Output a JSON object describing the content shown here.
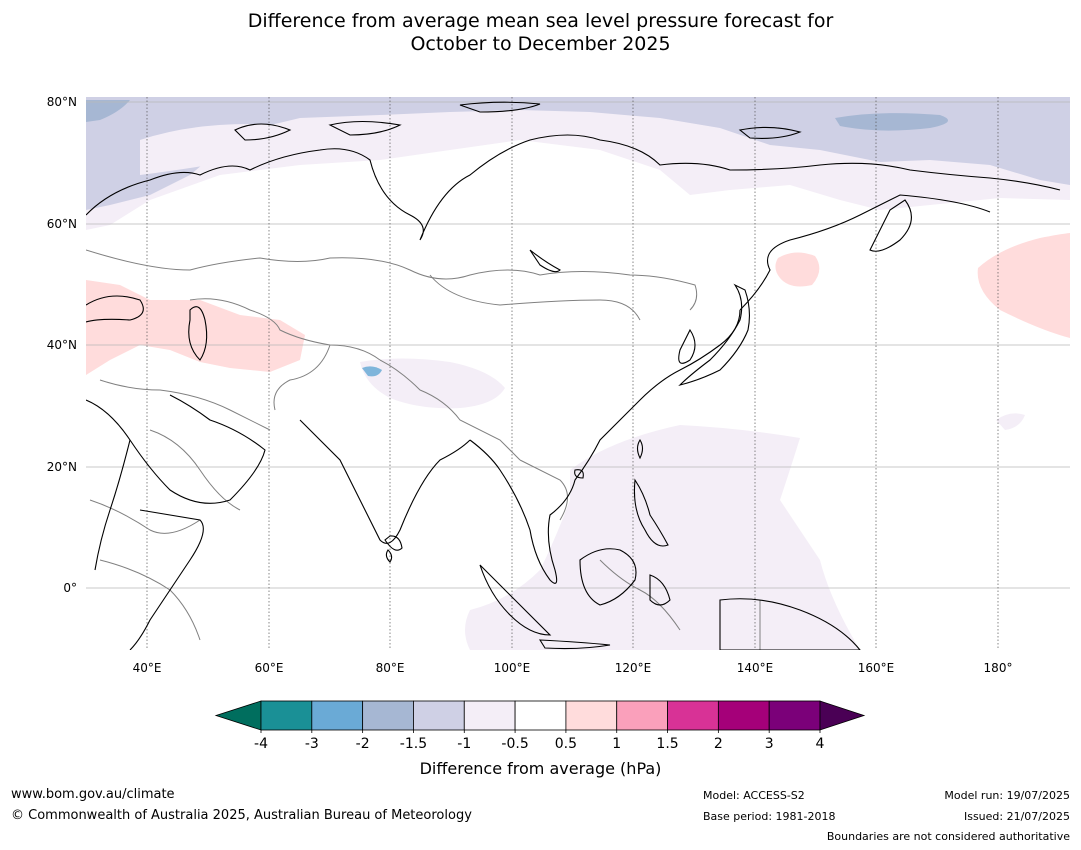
{
  "title": {
    "line1": "Difference from average mean sea level pressure forecast for",
    "line2": "October to December 2025"
  },
  "map": {
    "projection": "equirectangular",
    "region": "Asia and western Pacific",
    "lon_range": [
      30,
      190
    ],
    "lat_range": [
      -10,
      80
    ],
    "lat_labels": [
      "80°N",
      "60°N",
      "40°N",
      "20°N",
      "0°"
    ],
    "lon_labels": [
      "40°E",
      "60°E",
      "80°E",
      "100°E",
      "120°E",
      "140°E",
      "160°E",
      "180°"
    ],
    "colors": {
      "ocean_bg": "#ffffff",
      "coastline": "#000000",
      "borders": "#808080",
      "gridline": "#b0b0b0"
    }
  },
  "colorbar": {
    "ticks": [
      "-4",
      "-3",
      "-2",
      "-1.5",
      "-1",
      "-0.5",
      "0.5",
      "1",
      "1.5",
      "2",
      "3",
      "4"
    ],
    "low_extend_color": "#006e5e",
    "high_extend_color": "#4a0055",
    "bin_colors": [
      "#1a9096",
      "#6aaad6",
      "#a6b7d3",
      "#cfd0e5",
      "#f4eef7",
      "#ffffff",
      "#ffdcdc",
      "#faa0bb",
      "#d83296",
      "#a50079",
      "#7b0079"
    ],
    "title": "Difference from average (hPa)"
  },
  "footer": {
    "website": "www.bom.gov.au/climate",
    "copyright": "© Commonwealth of Australia 2025, Australian Bureau of Meteorology",
    "model": "Model: ACCESS-S2",
    "base_period": "Base period: 1981-2018",
    "model_run": "Model run: 19/07/2025",
    "issued": "Issued: 21/07/2025",
    "disclaimer": "Boundaries are not considered authoritative"
  }
}
